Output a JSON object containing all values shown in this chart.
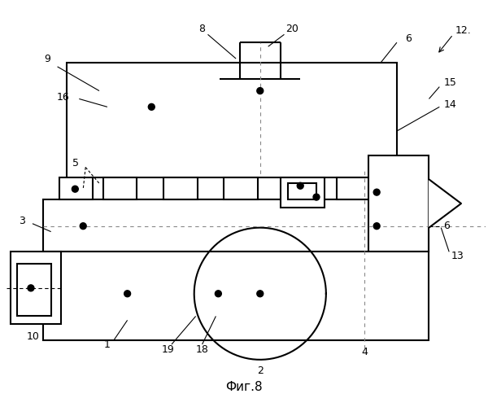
{
  "title": "Фиг.8",
  "bg_color": "#ffffff",
  "line_color": "#000000",
  "lw": 1.5,
  "thin_lw": 0.8
}
